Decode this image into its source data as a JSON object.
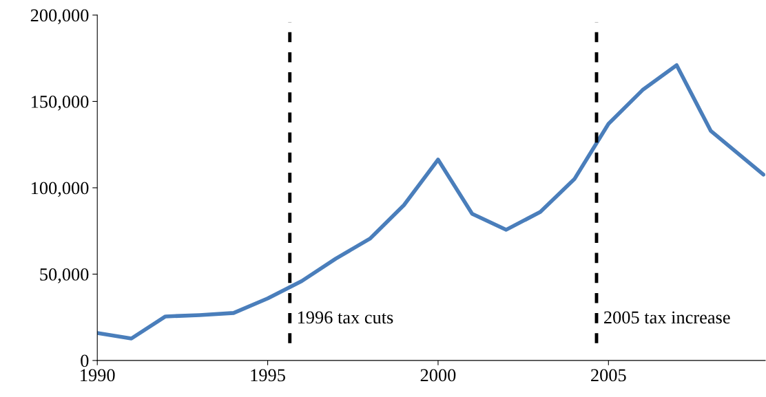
{
  "chart_data": {
    "type": "line",
    "x": [
      1990,
      1991,
      1992,
      1993,
      1994,
      1995,
      1996,
      1997,
      1998,
      1999,
      2000,
      2001,
      2002,
      2003,
      2004,
      2005,
      2006,
      2007,
      2008,
      2009.55
    ],
    "series": [
      {
        "color": "#4a7ebb",
        "values": [
          15900,
          12700,
          25500,
          26300,
          27500,
          35900,
          46000,
          59000,
          70500,
          90000,
          116300,
          84900,
          75700,
          86000,
          105000,
          137000,
          156600,
          171000,
          133000,
          107600
        ]
      }
    ],
    "xlim": [
      1990,
      2009.6
    ],
    "xticks": [
      1990,
      1995,
      2000,
      2005
    ],
    "ylim": [
      0,
      200000
    ],
    "yticks": [
      {
        "value": 0,
        "label": "0"
      },
      {
        "value": 50000,
        "label": "50,000"
      },
      {
        "value": 100000,
        "label": "100,000"
      },
      {
        "value": 150000,
        "label": "150,000"
      },
      {
        "value": 200000,
        "label": "200,000"
      }
    ],
    "ref_lines": [
      {
        "axis": "x",
        "value": 1995.65,
        "label": "1996 tax cuts",
        "color": "#000000",
        "line_style": "dashed"
      },
      {
        "axis": "x",
        "value": 2004.65,
        "label": "2005 tax increase",
        "color": "#000000",
        "line_style": "dashed"
      }
    ],
    "grid": false,
    "legend": false,
    "marker": "none",
    "line_style": "solid"
  }
}
